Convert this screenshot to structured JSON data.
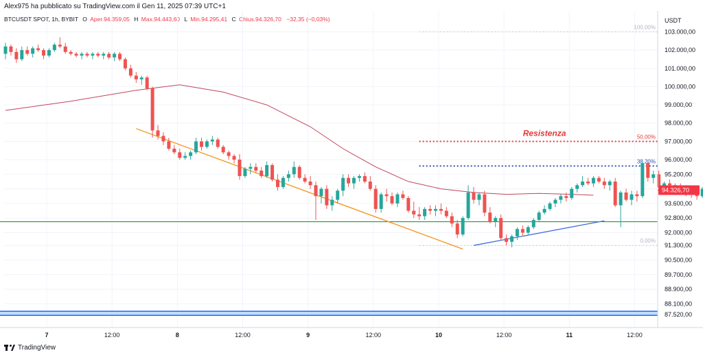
{
  "header": {
    "publisher": "Alex975 ha pubblicato su TradingView.com il Gen 11, 2025 07:39 UTC+1"
  },
  "legend": {
    "symbol": "BTCUSDT SPOT, 1h, BYBIT",
    "open_label": "O",
    "open_text": "Aper.94.359,05",
    "high_label": "H",
    "high_text": "Max.94.443,60",
    "low_label": "L",
    "low_text": "Min.94.295,41",
    "close_label": "C",
    "close_text": "Chius.94.326,70",
    "change_text": "−32,35 (−0,03%)"
  },
  "footer": {
    "brand": "TradingView"
  },
  "colors": {
    "up": "#26a69a",
    "down": "#ef5350",
    "ma": "#c2445a",
    "support": "#388e3c",
    "downtrend": "#f7931a",
    "uptrend": "#3f6fd8",
    "resistance": "#e03a3a",
    "fib382": "#2c4fb8",
    "bottom_band": "#2962ff",
    "price_tag": "#f23645"
  },
  "chart_data": {
    "type": "candlestick",
    "currency": "USDT",
    "y_ticks": [
      "103.000,00",
      "102.000,00",
      "101.000,00",
      "100.000,00",
      "99.000,00",
      "98.000,00",
      "97.000,00",
      "96.000,00",
      "95.200,00",
      "94.400,00",
      "93.600,00",
      "92.800,00",
      "92.000,00",
      "91.300,00",
      "90.500,00",
      "89.700,00",
      "88.900,00",
      "88.100,00",
      "87.520,00"
    ],
    "x_ticks": [
      {
        "label": "7",
        "bold": true,
        "hour": 0
      },
      {
        "label": "12:00",
        "bold": false,
        "hour": 12
      },
      {
        "label": "8",
        "bold": true,
        "hour": 24
      },
      {
        "label": "12:00",
        "bold": false,
        "hour": 36
      },
      {
        "label": "9",
        "bold": true,
        "hour": 48
      },
      {
        "label": "12:00",
        "bold": false,
        "hour": 60
      },
      {
        "label": "10",
        "bold": true,
        "hour": 72
      },
      {
        "label": "12:00",
        "bold": false,
        "hour": 84
      },
      {
        "label": "11",
        "bold": true,
        "hour": 96
      },
      {
        "label": "12:00",
        "bold": false,
        "hour": 108
      }
    ],
    "last_price_label": "94.326,70",
    "last_price": 94326.7,
    "candles": [
      [
        101800,
        102400,
        101500,
        102200
      ],
      [
        102200,
        102300,
        101700,
        101900
      ],
      [
        101900,
        102100,
        101300,
        101500
      ],
      [
        101500,
        102200,
        101400,
        102000
      ],
      [
        102000,
        102200,
        101700,
        101800
      ],
      [
        101800,
        102200,
        101600,
        102100
      ],
      [
        102100,
        102300,
        101900,
        102000
      ],
      [
        102000,
        102100,
        101500,
        101700
      ],
      [
        101700,
        102100,
        101600,
        102000
      ],
      [
        102000,
        102400,
        101900,
        102300
      ],
      [
        102300,
        102700,
        102100,
        102200
      ],
      [
        102200,
        102400,
        101800,
        101900
      ],
      [
        101900,
        102000,
        101700,
        101800
      ],
      [
        101800,
        101900,
        101600,
        101700
      ],
      [
        101700,
        101900,
        101500,
        101800
      ],
      [
        101800,
        101900,
        101600,
        101700
      ],
      [
        101700,
        101900,
        101500,
        101800
      ],
      [
        101800,
        101900,
        101600,
        101700
      ],
      [
        101700,
        101900,
        101500,
        101800
      ],
      [
        101800,
        101900,
        101500,
        101600
      ],
      [
        101600,
        101900,
        101400,
        101800
      ],
      [
        101800,
        101900,
        101400,
        101500
      ],
      [
        101500,
        101600,
        100900,
        101000
      ],
      [
        101000,
        101200,
        100500,
        100600
      ],
      [
        100600,
        100800,
        100200,
        100400
      ],
      [
        100400,
        100600,
        100100,
        100500
      ],
      [
        100500,
        100600,
        99800,
        99900
      ],
      [
        99900,
        100000,
        97200,
        97600
      ],
      [
        97600,
        97900,
        97100,
        97300
      ],
      [
        97300,
        97500,
        96800,
        97000
      ],
      [
        97000,
        97200,
        96500,
        96600
      ],
      [
        96600,
        96800,
        96300,
        96400
      ],
      [
        96400,
        96600,
        96000,
        96100
      ],
      [
        96100,
        96400,
        96000,
        96200
      ],
      [
        96200,
        96500,
        96000,
        96400
      ],
      [
        96400,
        97200,
        96300,
        97000
      ],
      [
        97000,
        97200,
        96500,
        96700
      ],
      [
        96700,
        97100,
        96600,
        97000
      ],
      [
        97000,
        97300,
        96800,
        97100
      ],
      [
        97100,
        97200,
        96600,
        96700
      ],
      [
        96700,
        96800,
        96300,
        96400
      ],
      [
        96400,
        96500,
        96000,
        96200
      ],
      [
        96200,
        96300,
        95800,
        96000
      ],
      [
        96000,
        96300,
        94900,
        95100
      ],
      [
        95100,
        95600,
        95000,
        95500
      ],
      [
        95500,
        95800,
        95200,
        95600
      ],
      [
        95600,
        95800,
        95300,
        95400
      ],
      [
        95400,
        95600,
        95000,
        95100
      ],
      [
        95100,
        95900,
        95000,
        95700
      ],
      [
        95700,
        95800,
        94800,
        94900
      ],
      [
        94900,
        95200,
        94300,
        94500
      ],
      [
        94500,
        95100,
        94400,
        95000
      ],
      [
        95000,
        95400,
        94800,
        95200
      ],
      [
        95200,
        95900,
        95000,
        95600
      ],
      [
        95600,
        95700,
        94900,
        95000
      ],
      [
        95000,
        95200,
        94700,
        94800
      ],
      [
        94800,
        95100,
        94400,
        94600
      ],
      [
        94600,
        94800,
        92700,
        94000
      ],
      [
        94000,
        94500,
        93600,
        94400
      ],
      [
        94400,
        94600,
        93300,
        93500
      ],
      [
        93500,
        94000,
        93200,
        93800
      ],
      [
        93800,
        94400,
        93600,
        94300
      ],
      [
        94300,
        95200,
        94000,
        95000
      ],
      [
        95000,
        95200,
        94500,
        94700
      ],
      [
        94700,
        95100,
        94400,
        95000
      ],
      [
        95000,
        95200,
        94800,
        95100
      ],
      [
        95100,
        95300,
        94700,
        94800
      ],
      [
        94800,
        95100,
        94300,
        94400
      ],
      [
        94400,
        94600,
        93100,
        93300
      ],
      [
        93300,
        94200,
        93100,
        94100
      ],
      [
        94100,
        94400,
        93700,
        94000
      ],
      [
        94000,
        94200,
        93500,
        93600
      ],
      [
        93600,
        94200,
        93400,
        94100
      ],
      [
        94100,
        94300,
        93800,
        93900
      ],
      [
        93900,
        94000,
        93100,
        93200
      ],
      [
        93200,
        93700,
        92800,
        93000
      ],
      [
        93000,
        93400,
        92700,
        92900
      ],
      [
        92900,
        93400,
        92700,
        93300
      ],
      [
        93300,
        93500,
        93000,
        93200
      ],
      [
        93200,
        93500,
        92900,
        93300
      ],
      [
        93300,
        93600,
        93000,
        93200
      ],
      [
        93200,
        93400,
        92800,
        92900
      ],
      [
        92900,
        93100,
        92300,
        92500
      ],
      [
        92500,
        92700,
        91700,
        91900
      ],
      [
        91900,
        92900,
        91800,
        92800
      ],
      [
        92800,
        94600,
        92700,
        94200
      ],
      [
        94200,
        94500,
        93600,
        93800
      ],
      [
        93800,
        94200,
        93500,
        94100
      ],
      [
        94100,
        94300,
        92900,
        93100
      ],
      [
        93100,
        93400,
        92500,
        92600
      ],
      [
        92600,
        92900,
        92300,
        92800
      ],
      [
        92800,
        93000,
        91600,
        91700
      ],
      [
        91700,
        91900,
        91300,
        91500
      ],
      [
        91500,
        91900,
        91200,
        91800
      ],
      [
        91800,
        92300,
        91600,
        92200
      ],
      [
        92200,
        92400,
        91800,
        92000
      ],
      [
        92000,
        92400,
        91900,
        92300
      ],
      [
        92300,
        92800,
        92200,
        92700
      ],
      [
        92700,
        93200,
        92600,
        93100
      ],
      [
        93100,
        93500,
        93000,
        93300
      ],
      [
        93300,
        93700,
        93200,
        93600
      ],
      [
        93600,
        93900,
        93400,
        93800
      ],
      [
        93800,
        94100,
        93600,
        94000
      ],
      [
        94000,
        94200,
        93700,
        93900
      ],
      [
        93900,
        94500,
        93800,
        94400
      ],
      [
        94400,
        94700,
        94200,
        94600
      ],
      [
        94600,
        95100,
        94500,
        94800
      ],
      [
        94800,
        95000,
        94600,
        94700
      ],
      [
        94700,
        95100,
        94500,
        95000
      ],
      [
        95000,
        95100,
        94700,
        94800
      ],
      [
        94800,
        95000,
        94400,
        94600
      ],
      [
        94600,
        94900,
        94300,
        94800
      ],
      [
        94800,
        95000,
        93400,
        93500
      ],
      [
        93500,
        94300,
        92300,
        94200
      ],
      [
        94200,
        94400,
        93700,
        93800
      ],
      [
        93800,
        94300,
        93500,
        94100
      ],
      [
        94100,
        94300,
        93700,
        94000
      ],
      [
        94000,
        95900,
        93900,
        95800
      ],
      [
        95800,
        95900,
        94800,
        95000
      ],
      [
        95000,
        95400,
        94700,
        95200
      ],
      [
        95200,
        95400,
        94400,
        94500
      ],
      [
        94500,
        94800,
        94200,
        94700
      ],
      [
        94700,
        94900,
        94400,
        94600
      ],
      [
        94600,
        94700,
        94300,
        94500
      ],
      [
        94500,
        94700,
        94200,
        94300
      ],
      [
        94300,
        94600,
        94000,
        94200
      ],
      [
        94200,
        94400,
        93900,
        94100
      ],
      [
        94100,
        94300,
        93800,
        94000
      ],
      [
        94000,
        94500,
        93900,
        94400
      ],
      [
        94359.05,
        94443.6,
        94295.41,
        94326.7
      ]
    ],
    "moving_average": [
      [
        0,
        98700
      ],
      [
        12,
        99200
      ],
      [
        24,
        99800
      ],
      [
        32,
        100100
      ],
      [
        40,
        99700
      ],
      [
        48,
        99000
      ],
      [
        56,
        97800
      ],
      [
        62,
        96600
      ],
      [
        68,
        95600
      ],
      [
        74,
        94800
      ],
      [
        80,
        94400
      ],
      [
        86,
        94200
      ],
      [
        92,
        94100
      ],
      [
        98,
        94150
      ],
      [
        104,
        94100
      ],
      [
        108,
        94050
      ]
    ],
    "annotations": {
      "resistance_label": "Resistenza",
      "fib_levels": [
        {
          "label": "100,00%",
          "price": 103000
        },
        {
          "label": "50,00%",
          "price": 97000
        },
        {
          "label": "38,20%",
          "price": 95650
        },
        {
          "label": "0,00%",
          "price": 91300
        }
      ],
      "support_price": 92600,
      "downtrend_line": [
        [
          24,
          97700
        ],
        [
          84,
          91100
        ]
      ],
      "uptrend_line": [
        [
          86,
          91300
        ],
        [
          110,
          92650
        ]
      ],
      "bottom_band_price": 87580
    }
  }
}
